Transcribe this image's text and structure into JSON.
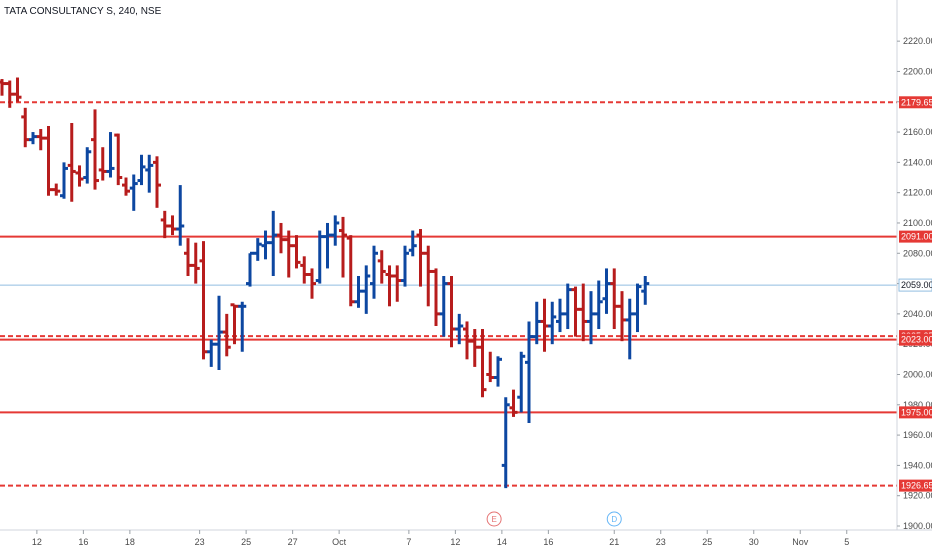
{
  "header": {
    "title": "TATA CONSULTANCY S, 240, NSE"
  },
  "colors": {
    "up": "#0d47a1",
    "down": "#b71c1c",
    "level": "#e53935",
    "current": "#90bde0"
  },
  "events": [
    {
      "name": "earnings",
      "label": "E",
      "date": "Oct 12",
      "color": "#e57373"
    },
    {
      "name": "dividend",
      "label": "D",
      "date": "Oct 19",
      "color": "#64b5f6"
    }
  ],
  "chart_data": {
    "type": "ohlc",
    "ylim": [
      1900,
      2230
    ],
    "y_ticks": [
      {
        "value": 1900,
        "label": "1900.00"
      },
      {
        "value": 1920,
        "label": "1920.00"
      },
      {
        "value": 1940,
        "label": "1940.00"
      },
      {
        "value": 1960,
        "label": "1960.00"
      },
      {
        "value": 1980,
        "label": "1980.00"
      },
      {
        "value": 2000,
        "label": "2000.00"
      },
      {
        "value": 2020,
        "label": "2020.00"
      },
      {
        "value": 2040,
        "label": "2040.00"
      },
      {
        "value": 2060,
        "label": "2060.00"
      },
      {
        "value": 2080,
        "label": "2080.00"
      },
      {
        "value": 2100,
        "label": "2100.00"
      },
      {
        "value": 2120,
        "label": "2120.00"
      },
      {
        "value": 2140,
        "label": "2140.00"
      },
      {
        "value": 2160,
        "label": "2160.00"
      },
      {
        "value": 2180,
        "label": "2180.00"
      },
      {
        "value": 2200,
        "label": "2200.00"
      },
      {
        "value": 2220,
        "label": "2220.00"
      }
    ],
    "x_ticks": [
      {
        "bar": 4.5,
        "label": "12"
      },
      {
        "bar": 10.5,
        "label": "16"
      },
      {
        "bar": 16.5,
        "label": "18"
      },
      {
        "bar": 25.5,
        "label": "23"
      },
      {
        "bar": 31.5,
        "label": "25"
      },
      {
        "bar": 37.5,
        "label": "27"
      },
      {
        "bar": 43.5,
        "label": "Oct"
      },
      {
        "bar": 52.5,
        "label": "7"
      },
      {
        "bar": 58.5,
        "label": "12"
      },
      {
        "bar": 64.5,
        "label": "14"
      },
      {
        "bar": 70.5,
        "label": "16"
      },
      {
        "bar": 79,
        "label": "21"
      },
      {
        "bar": 85,
        "label": "23"
      },
      {
        "bar": 91,
        "label": "25"
      },
      {
        "bar": 97,
        "label": "30"
      },
      {
        "bar": 103,
        "label": "Nov"
      },
      {
        "bar": 109,
        "label": "5"
      }
    ],
    "levels": [
      {
        "value": 2179.65,
        "label": "2179.65",
        "style": "dashed"
      },
      {
        "value": 2091.0,
        "label": "2091.00",
        "style": "solid"
      },
      {
        "value": 2025.35,
        "label": "2025.35",
        "style": "dashed"
      },
      {
        "value": 2023.0,
        "label": "2023.00",
        "style": "solid"
      },
      {
        "value": 1975.0,
        "label": "1975.00",
        "style": "solid"
      },
      {
        "value": 1926.65,
        "label": "1926.65",
        "style": "dashed"
      }
    ],
    "current_price": {
      "value": 2059.0,
      "label": "2059.00"
    },
    "bars": [
      [
        2193,
        2195,
        2184,
        2192
      ],
      [
        2192,
        2194,
        2176,
        2185
      ],
      [
        2185,
        2196,
        2180,
        2183
      ],
      [
        2170,
        2176,
        2150,
        2155
      ],
      [
        2155,
        2160,
        2152,
        2157
      ],
      [
        2157,
        2162,
        2148,
        2156
      ],
      [
        2156,
        2164,
        2118,
        2122
      ],
      [
        2122,
        2126,
        2118,
        2121
      ],
      [
        2118,
        2140,
        2116,
        2136
      ],
      [
        2138,
        2166,
        2114,
        2134
      ],
      [
        2133,
        2138,
        2124,
        2129
      ],
      [
        2130,
        2150,
        2126,
        2147
      ],
      [
        2155,
        2175,
        2122,
        2128
      ],
      [
        2135,
        2150,
        2128,
        2134
      ],
      [
        2134,
        2160,
        2130,
        2136
      ],
      [
        2158,
        2159,
        2125,
        2130
      ],
      [
        2125,
        2130,
        2118,
        2121
      ],
      [
        2123,
        2132,
        2108,
        2126
      ],
      [
        2128,
        2145,
        2125,
        2137
      ],
      [
        2135,
        2145,
        2120,
        2138
      ],
      [
        2140,
        2144,
        2110,
        2125
      ],
      [
        2102,
        2108,
        2090,
        2098
      ],
      [
        2098,
        2105,
        2092,
        2096
      ],
      [
        2096,
        2125,
        2085,
        2098
      ],
      [
        2080,
        2090,
        2065,
        2072
      ],
      [
        2072,
        2087,
        2060,
        2070
      ],
      [
        2075,
        2088,
        2010,
        2015
      ],
      [
        2015,
        2023,
        2005,
        2020
      ],
      [
        2020,
        2052,
        2003,
        2028
      ],
      [
        2028,
        2040,
        2012,
        2018
      ],
      [
        2046,
        2046,
        2020,
        2045
      ],
      [
        2045,
        2048,
        2015,
        2045
      ],
      [
        2060,
        2080,
        2058,
        2080
      ],
      [
        2080,
        2090,
        2075,
        2086
      ],
      [
        2085,
        2095,
        2076,
        2087
      ],
      [
        2087,
        2108,
        2065,
        2092
      ],
      [
        2092,
        2100,
        2080,
        2089
      ],
      [
        2089,
        2095,
        2064,
        2085
      ],
      [
        2085,
        2092,
        2070,
        2074
      ],
      [
        2072,
        2078,
        2060,
        2066
      ],
      [
        2066,
        2070,
        2050,
        2060
      ],
      [
        2062,
        2095,
        2060,
        2091
      ],
      [
        2091,
        2100,
        2070,
        2092
      ],
      [
        2092,
        2105,
        2085,
        2100
      ],
      [
        2095,
        2104,
        2064,
        2092
      ],
      [
        2090,
        2092,
        2045,
        2048
      ],
      [
        2048,
        2065,
        2044,
        2055
      ],
      [
        2055,
        2072,
        2040,
        2065
      ],
      [
        2060,
        2085,
        2050,
        2080
      ],
      [
        2075,
        2082,
        2060,
        2068
      ],
      [
        2066,
        2072,
        2045,
        2065
      ],
      [
        2065,
        2072,
        2048,
        2062
      ],
      [
        2062,
        2085,
        2058,
        2080
      ],
      [
        2082,
        2095,
        2078,
        2085
      ],
      [
        2092,
        2096,
        2058,
        2080
      ],
      [
        2080,
        2085,
        2045,
        2068
      ],
      [
        2068,
        2070,
        2032,
        2040
      ],
      [
        2040,
        2065,
        2025,
        2060
      ],
      [
        2060,
        2065,
        2018,
        2030
      ],
      [
        2030,
        2040,
        2020,
        2032
      ],
      [
        2030,
        2035,
        2010,
        2022
      ],
      [
        2022,
        2030,
        2005,
        2018
      ],
      [
        2018,
        2030,
        1985,
        1990
      ],
      [
        2000,
        2015,
        1995,
        1998
      ],
      [
        1998,
        2012,
        1992,
        2010
      ],
      [
        1940,
        1985,
        1925,
        1980
      ],
      [
        1978,
        1990,
        1972,
        1975
      ],
      [
        1985,
        2015,
        1975,
        2012
      ],
      [
        2008,
        2035,
        1968,
        2025
      ],
      [
        2025,
        2048,
        2020,
        2035
      ],
      [
        2035,
        2050,
        2015,
        2032
      ],
      [
        2032,
        2048,
        2020,
        2038
      ],
      [
        2035,
        2050,
        2028,
        2040
      ],
      [
        2040,
        2060,
        2030,
        2056
      ],
      [
        2056,
        2058,
        2025,
        2043
      ],
      [
        2043,
        2060,
        2022,
        2035
      ],
      [
        2035,
        2055,
        2020,
        2040
      ],
      [
        2040,
        2062,
        2030,
        2048
      ],
      [
        2050,
        2070,
        2040,
        2060
      ],
      [
        2060,
        2070,
        2030,
        2045
      ],
      [
        2045,
        2055,
        2022,
        2036
      ],
      [
        2036,
        2050,
        2010,
        2040
      ],
      [
        2040,
        2060,
        2028,
        2058
      ],
      [
        2055,
        2065,
        2046,
        2060
      ]
    ]
  }
}
